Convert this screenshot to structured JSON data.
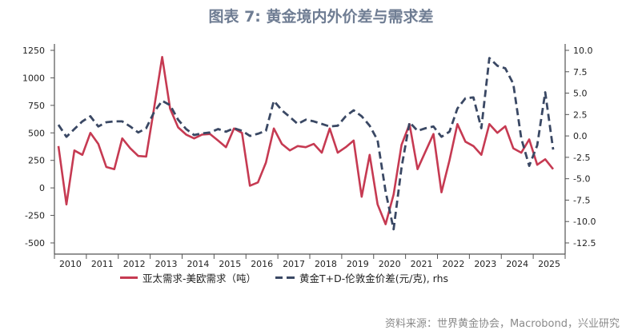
{
  "title": "图表 7:  黄金境内外价差与需求差",
  "source": "资料来源：世界黄金协会，Macrobond，兴业研究",
  "chart_data": {
    "type": "line",
    "title": "图表 7:  黄金境内外价差与需求差",
    "x_start": "2010Q1",
    "frequency": "quarterly",
    "x_tick_labels": [
      "2010",
      "2011",
      "2012",
      "2013",
      "2014",
      "2015",
      "2016",
      "2017",
      "2018",
      "2019",
      "2020",
      "2021",
      "2022",
      "2023",
      "2024",
      "2025"
    ],
    "left_axis": {
      "ylim": [
        -500,
        1250
      ],
      "ticks": [
        -500,
        -250,
        0,
        250,
        500,
        750,
        1000,
        1250
      ]
    },
    "right_axis": {
      "ylim": [
        -12.5,
        10
      ],
      "ticks": [
        "-12.5",
        "-10.0",
        "-7.5",
        "-5.0",
        "-2.5",
        "0.0",
        "2.5",
        "5.0",
        "7.5",
        "10.0"
      ]
    },
    "grid": false,
    "legend": "bottom",
    "series": [
      {
        "name": "亚太需求-美欧需求（吨）",
        "axis": "left",
        "style": "solid",
        "color": "#c63a52",
        "values": [
          380,
          -150,
          340,
          300,
          500,
          400,
          190,
          170,
          450,
          360,
          290,
          285,
          730,
          1190,
          720,
          550,
          485,
          450,
          485,
          490,
          430,
          370,
          540,
          500,
          20,
          50,
          230,
          540,
          400,
          340,
          380,
          370,
          400,
          320,
          540,
          320,
          370,
          430,
          -80,
          300,
          -150,
          -330,
          -60,
          390,
          580,
          170,
          330,
          490,
          -40,
          250,
          580,
          420,
          380,
          300,
          580,
          500,
          560,
          360,
          320,
          440,
          210,
          260,
          170
        ]
      },
      {
        "name": "黄金T+D-伦敦金价差(元/克), rhs",
        "axis": "right",
        "style": "dashed",
        "color": "#3a4864",
        "values": [
          1.3,
          -0.1,
          0.8,
          1.7,
          2.3,
          1.1,
          1.6,
          1.7,
          1.7,
          1.1,
          0.4,
          0.9,
          2.8,
          4.1,
          3.6,
          1.9,
          0.8,
          0.1,
          0.3,
          0.4,
          0.8,
          0.5,
          0.9,
          0.6,
          0.0,
          0.25,
          0.6,
          4.1,
          3.0,
          2.2,
          1.4,
          1.9,
          1.7,
          1.4,
          1.1,
          1.2,
          2.3,
          3.0,
          2.3,
          1.2,
          -0.5,
          -6.5,
          -10.9,
          -3.7,
          1.6,
          0.6,
          0.9,
          1.1,
          -0.1,
          0.5,
          3.2,
          4.4,
          4.5,
          0.9,
          9.1,
          8.2,
          7.9,
          6.1,
          -0.3,
          -3.5,
          -1.1,
          5.1,
          -1.6
        ]
      }
    ]
  }
}
